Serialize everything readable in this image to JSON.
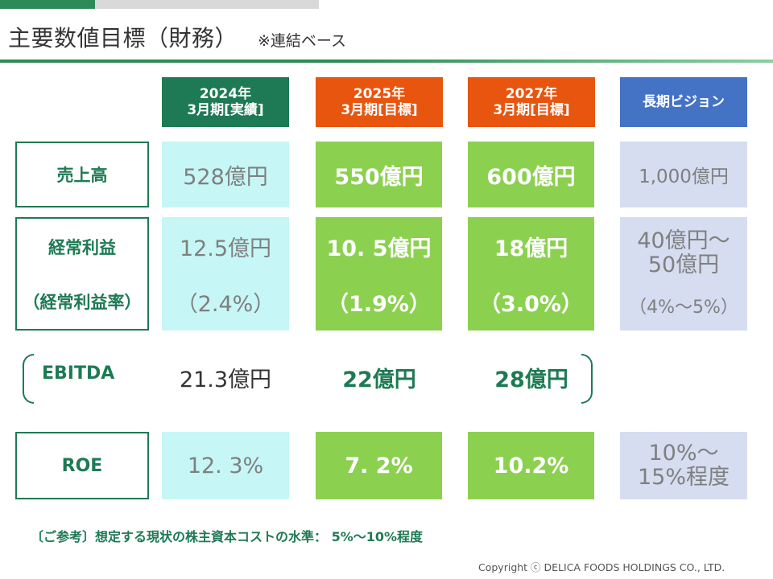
{
  "header": {
    "title": "主要数値目標（財務）",
    "subtitle": "※連結ベース"
  },
  "columns": [
    {
      "line1": "2024年",
      "line2": "3月期[実績]",
      "color": "#1e7a54"
    },
    {
      "line1": "2025年",
      "line2": "3月期[目標]",
      "color": "#e8550f"
    },
    {
      "line1": "2027年",
      "line2": "3月期[目標]",
      "color": "#e8550f"
    },
    {
      "line1": "長期ビジョン",
      "color": "#4472c4"
    }
  ],
  "rows": {
    "sales": {
      "label": "売上高",
      "values": [
        "528億円",
        "550億円",
        "600億円",
        "1,000億円"
      ]
    },
    "ordinary_profit": {
      "label": "経常利益",
      "sublabel": "（経常利益率）",
      "values": [
        "12.5億円",
        "10. 5億円",
        "18億円"
      ],
      "rates": [
        "（2.4%）",
        "（1.9%）",
        "（3.0%）"
      ],
      "vision_line1": "40億円～",
      "vision_line2": "50億円",
      "vision_rate": "（4%～5%）"
    },
    "ebitda": {
      "label": "EBITDA",
      "values": [
        "21.3億円",
        "22億円",
        "28億円"
      ]
    },
    "roe": {
      "label": "ROE",
      "values": [
        "12. 3%",
        "7. 2%",
        "10.2%"
      ],
      "vision_line1": "10%～",
      "vision_line2": "15%程度"
    }
  },
  "note": "〔ご参考〕想定する現状の株主資本コストの水準：  5%～10%程度",
  "copyright": "Copyright ⓒ DELICA FOODS HOLDINGS CO., LTD.",
  "colors": {
    "brand_green": "#1e7a54",
    "accent_orange": "#e8550f",
    "vision_blue": "#4472c4",
    "actual_cell": "#c6f6f6",
    "target_cell": "#8cd050",
    "vision_cell": "#d6ddf0"
  }
}
